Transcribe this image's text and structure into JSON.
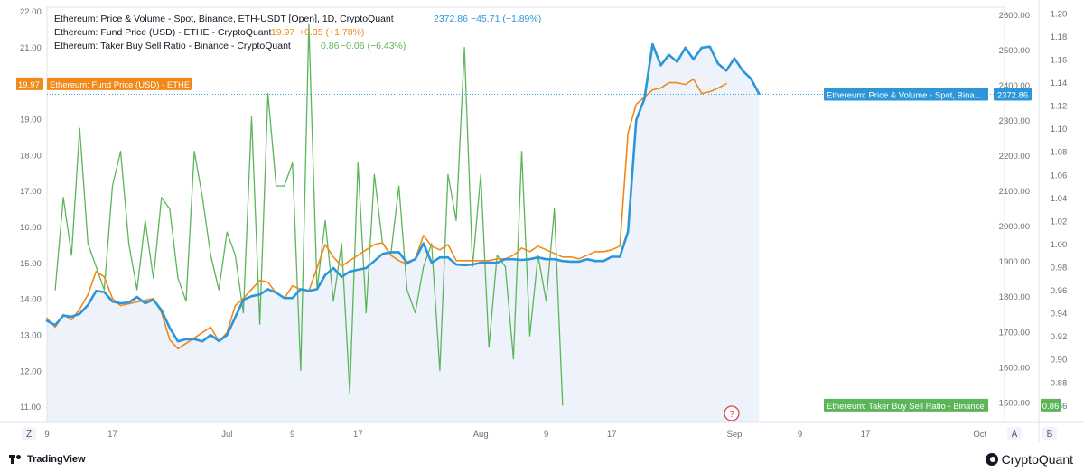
{
  "legend": {
    "price": {
      "label": "Ethereum: Price & Volume - Spot, Binance, ETH-USDT [Open], 1D, CryptoQuant",
      "value": "2372.86",
      "change": "−45.71 (−1.89%)"
    },
    "fund": {
      "label": "Ethereum: Fund Price (USD) - ETHE - CryptoQuant",
      "value": "19.97",
      "change": "+0.35 (+1.78%)"
    },
    "ratio": {
      "label": "Ethereum: Taker Buy Sell Ratio - Binance - CryptoQuant",
      "value": "0.86",
      "change": "−0.06 (−6.43%)"
    }
  },
  "tags": {
    "fund_value": "19.97",
    "fund_name": "Ethereum: Fund Price (USD) - ETHE",
    "price_name": "Ethereum: Price & Volume - Spot, Bina...",
    "price_value": "2372.86",
    "ratio_name": "Ethereum: Taker Buy Sell Ratio - Binance",
    "ratio_value": "0.86"
  },
  "buttons": {
    "zoom": "Z",
    "auto": "A",
    "log": "B"
  },
  "help_icon": "?",
  "footer": {
    "tradingview": "TradingView",
    "cryptoquant": "CryptoQuant"
  },
  "colors": {
    "price": "#2d96d8",
    "fund": "#f0891a",
    "ratio": "#5db55a",
    "fill": "#dfe8f7"
  },
  "chart_data": {
    "type": "line",
    "x_tick_labels": [
      {
        "label": "9",
        "date": "2024-06-09"
      },
      {
        "label": "17",
        "date": "2024-06-17"
      },
      {
        "label": "Jul",
        "date": "2024-07-01"
      },
      {
        "label": "9",
        "date": "2024-07-09"
      },
      {
        "label": "17",
        "date": "2024-07-17"
      },
      {
        "label": "Aug",
        "date": "2024-08-01"
      },
      {
        "label": "9",
        "date": "2024-08-09"
      },
      {
        "label": "17",
        "date": "2024-08-17"
      },
      {
        "label": "Sep",
        "date": "2024-09-01"
      },
      {
        "label": "9",
        "date": "2024-09-09"
      },
      {
        "label": "17",
        "date": "2024-09-17"
      },
      {
        "label": "Oct",
        "date": "2024-10-01"
      }
    ],
    "xlim": [
      "2024-06-09",
      "2024-10-04"
    ],
    "left_axis": {
      "ticks": [
        "22.00",
        "21.00",
        "20.00",
        "19.00",
        "18.00",
        "17.00",
        "16.00",
        "15.00",
        "14.00",
        "13.00",
        "12.00",
        "11.00"
      ],
      "ylim": [
        10.55,
        22.1
      ]
    },
    "mid_axis": {
      "ticks": [
        "2600.00",
        "2500.00",
        "2400.00",
        "2300.00",
        "2200.00",
        "2100.00",
        "2000.00",
        "1900.00",
        "1800.00",
        "1700.00",
        "1600.00",
        "1500.00"
      ],
      "ylim": [
        1442,
        2620
      ]
    },
    "right_axis": {
      "ticks": [
        "1.20",
        "1.18",
        "1.16",
        "1.14",
        "1.12",
        "1.10",
        "1.08",
        "1.06",
        "1.04",
        "1.02",
        "1.00",
        "0.98",
        "0.96",
        "0.94",
        "0.92",
        "0.90",
        "0.88",
        "0.86"
      ],
      "ylim": [
        0.845,
        1.205
      ]
    },
    "series": [
      {
        "name": "Ethereum: Price & Volume - Spot, Binance, ETH-USDT [Open], 1D, CryptoQuant",
        "axis": "mid",
        "start": "2024-06-09",
        "values": [
          1730,
          1718,
          1745,
          1742,
          1750,
          1775,
          1815,
          1812,
          1785,
          1780,
          1782,
          1798,
          1780,
          1790,
          1760,
          1710,
          1672,
          1678,
          1678,
          1672,
          1690,
          1673,
          1690,
          1740,
          1790,
          1800,
          1805,
          1820,
          1810,
          1795,
          1795,
          1820,
          1815,
          1820,
          1860,
          1880,
          1855,
          1870,
          1875,
          1880,
          1900,
          1920,
          1925,
          1925,
          1895,
          1905,
          1950,
          1895,
          1910,
          1910,
          1890,
          1888,
          1890,
          1895,
          1895,
          1895,
          1905,
          1905,
          1903,
          1905,
          1910,
          1905,
          1905,
          1900,
          1898,
          1898,
          1905,
          1900,
          1900,
          1912,
          1912,
          1983,
          2300,
          2360,
          2515,
          2455,
          2485,
          2465,
          2505,
          2472,
          2505,
          2508,
          2460,
          2440,
          2475,
          2440,
          2418,
          2375
        ]
      },
      {
        "name": "Ethereum: Fund Price (USD) - ETHE - CryptoQuant",
        "axis": "left",
        "start": "2024-06-09",
        "values": [
          13.45,
          13.2,
          13.55,
          13.4,
          13.7,
          14.1,
          14.75,
          14.6,
          14.0,
          13.8,
          13.85,
          13.9,
          13.95,
          14.0,
          13.6,
          12.85,
          12.6,
          12.75,
          12.9,
          13.05,
          13.2,
          12.8,
          13.05,
          13.8,
          14.0,
          14.25,
          14.5,
          14.45,
          14.15,
          14.0,
          14.35,
          14.25,
          14.2,
          14.85,
          15.5,
          15.15,
          14.9,
          15.05,
          15.2,
          15.35,
          15.5,
          15.55,
          15.2,
          15.05,
          14.95,
          15.1,
          15.75,
          15.45,
          15.35,
          15.5,
          15.05,
          15.05,
          15.05,
          15.05,
          15.05,
          15.1,
          15.1,
          15.2,
          15.4,
          15.3,
          15.45,
          15.35,
          15.25,
          15.15,
          15.15,
          15.1,
          15.2,
          15.3,
          15.3,
          15.35,
          15.45,
          18.6,
          19.4,
          19.6,
          19.8,
          19.85,
          20.0,
          20.0,
          19.95,
          20.1,
          19.7,
          19.75,
          19.85,
          19.97
        ]
      },
      {
        "name": "Ethereum: Taker Buy Sell Ratio - Binance - CryptoQuant",
        "axis": "right",
        "start": "2024-06-10",
        "values": [
          0.96,
          1.04,
          0.99,
          1.1,
          1.0,
          0.98,
          0.96,
          1.05,
          1.08,
          1.0,
          0.96,
          1.02,
          0.97,
          1.04,
          1.03,
          0.97,
          0.95,
          1.08,
          1.04,
          0.99,
          0.96,
          1.01,
          0.99,
          0.94,
          1.11,
          0.93,
          1.13,
          1.05,
          1.05,
          1.07,
          0.89,
          1.19,
          0.96,
          1.02,
          0.95,
          1.0,
          0.87,
          1.07,
          0.94,
          1.06,
          1.0,
          0.99,
          1.05,
          0.96,
          0.94,
          0.98,
          1.0,
          0.89,
          1.06,
          1.02,
          1.17,
          0.98,
          1.06,
          0.91,
          0.99,
          0.98,
          0.9,
          1.08,
          0.92,
          0.99,
          0.95,
          1.03,
          0.86
        ]
      }
    ]
  }
}
